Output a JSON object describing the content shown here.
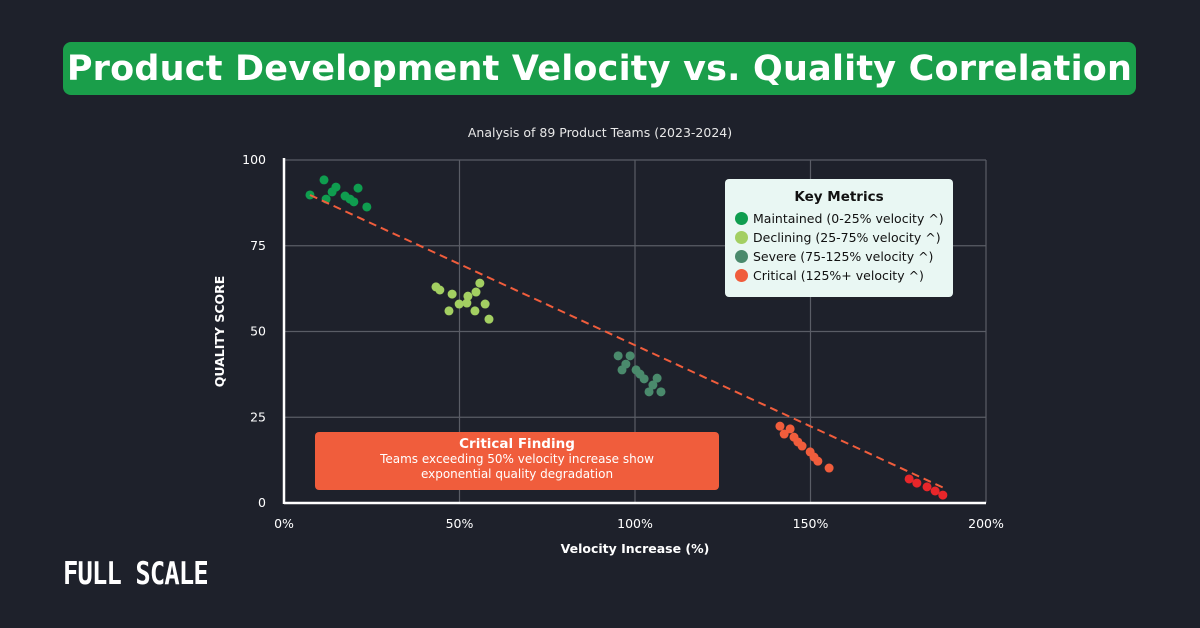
{
  "title": "Product Development Velocity vs. Quality Correlation",
  "brand": "FULL SCALE",
  "colors": {
    "background": "#1e212b",
    "banner": "#1a9e4a",
    "trendline": "#f05d3c",
    "callout": "#f05d3c",
    "legend_bg": "#e9f7f3"
  },
  "chart_data": {
    "type": "scatter",
    "title": "Analysis of 89 Product Teams (2023-2024)",
    "xlabel": "Velocity Increase (%)",
    "ylabel": "QUALITY SCORE",
    "xlim": [
      0,
      200
    ],
    "ylim": [
      0,
      100
    ],
    "x_ticks": [
      {
        "v": 0,
        "label": "0%"
      },
      {
        "v": 50,
        "label": "50%"
      },
      {
        "v": 100,
        "label": "100%"
      },
      {
        "v": 150,
        "label": "150%"
      },
      {
        "v": 200,
        "label": "200%"
      }
    ],
    "y_ticks": [
      {
        "v": 0,
        "label": "0"
      },
      {
        "v": 25,
        "label": "25"
      },
      {
        "v": 50,
        "label": "50"
      },
      {
        "v": 75,
        "label": "75"
      },
      {
        "v": 100,
        "label": "100"
      }
    ],
    "grid": true,
    "legend_placement": "top-right",
    "legend_title": "Key Metrics",
    "series": [
      {
        "name": "Maintained (0-25% velocity ^)",
        "color": "#0f9d4f",
        "points": [
          [
            7.4,
            89.8
          ],
          [
            11.4,
            94.2
          ],
          [
            12.0,
            88.6
          ],
          [
            13.7,
            90.7
          ],
          [
            14.8,
            92.1
          ],
          [
            17.4,
            89.5
          ],
          [
            18.8,
            88.6
          ],
          [
            19.9,
            87.8
          ],
          [
            21.1,
            91.8
          ],
          [
            23.6,
            86.3
          ]
        ]
      },
      {
        "name": "Declining (25-75% velocity ^)",
        "color": "#a3cf62",
        "points": [
          [
            43.3,
            63.0
          ],
          [
            44.4,
            62.1
          ],
          [
            47.9,
            60.9
          ],
          [
            47.0,
            56.0
          ],
          [
            49.9,
            58.0
          ],
          [
            52.1,
            58.3
          ],
          [
            52.4,
            60.3
          ],
          [
            54.7,
            61.5
          ],
          [
            55.8,
            64.1
          ],
          [
            54.4,
            56.0
          ],
          [
            57.3,
            58.0
          ],
          [
            58.4,
            53.6
          ]
        ]
      },
      {
        "name": "Severe (75-125% velocity ^)",
        "color": "#4a8a6c",
        "points": [
          [
            95.2,
            42.9
          ],
          [
            98.6,
            42.9
          ],
          [
            97.4,
            40.5
          ],
          [
            96.3,
            38.8
          ],
          [
            100.3,
            38.8
          ],
          [
            101.4,
            37.6
          ],
          [
            102.6,
            36.2
          ],
          [
            106.3,
            36.4
          ],
          [
            105.1,
            34.4
          ],
          [
            104.0,
            32.4
          ],
          [
            107.4,
            32.4
          ]
        ]
      },
      {
        "name": "Critical (125%+ velocity ^)",
        "color": "#f05d3c",
        "points": [
          [
            141.3,
            22.4
          ],
          [
            144.2,
            21.6
          ],
          [
            142.5,
            20.1
          ],
          [
            145.3,
            19.2
          ],
          [
            146.4,
            17.8
          ],
          [
            147.6,
            16.6
          ],
          [
            149.9,
            14.9
          ],
          [
            151.0,
            13.4
          ],
          [
            152.1,
            12.2
          ],
          [
            155.3,
            10.2
          ]
        ]
      },
      {
        "color": "#e8262a",
        "points": [
          [
            178.1,
            7.0
          ],
          [
            180.3,
            5.8
          ],
          [
            183.2,
            4.7
          ],
          [
            185.5,
            3.5
          ],
          [
            187.7,
            2.3
          ]
        ]
      }
    ],
    "trendline": {
      "from": [
        7.4,
        89.8
      ],
      "to": [
        188.6,
        4.1
      ],
      "style": "dashed"
    },
    "annotation": {
      "title": "Critical Finding",
      "lines": [
        "Teams exceeding 50% velocity increase show",
        "exponential quality degradation"
      ]
    }
  }
}
